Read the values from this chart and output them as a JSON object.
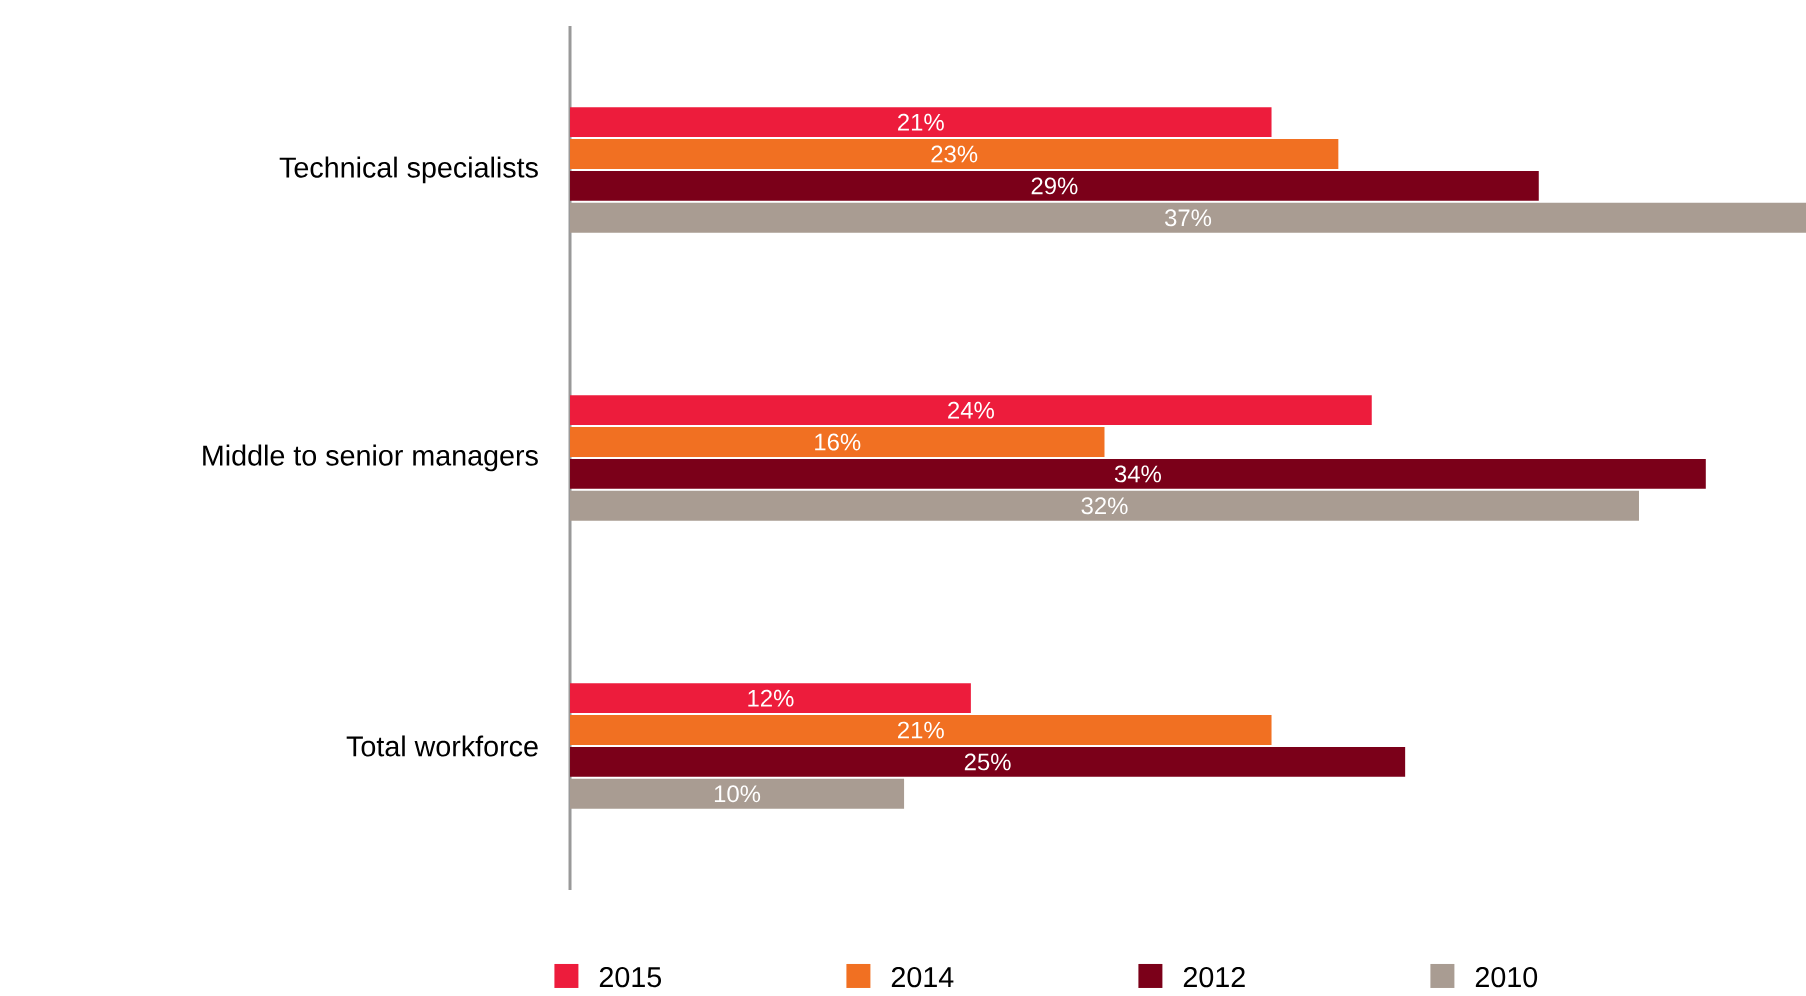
{
  "chart_data": {
    "type": "bar",
    "orientation": "horizontal",
    "categories": [
      "Technical specialists",
      "Middle to senior managers",
      "Total workforce"
    ],
    "series": [
      {
        "name": "2015",
        "color": "#ed1c3c",
        "values": [
          21,
          24,
          12
        ],
        "value_labels": [
          "21%",
          "24%",
          "12%"
        ]
      },
      {
        "name": "2014",
        "color": "#f17022",
        "values": [
          23,
          16,
          21
        ],
        "value_labels": [
          "23%",
          "16%",
          "21%"
        ]
      },
      {
        "name": "2012",
        "color": "#7b0019",
        "values": [
          29,
          34,
          25
        ],
        "value_labels": [
          "29%",
          "34%",
          "25%"
        ]
      },
      {
        "name": "2010",
        "color": "#a99c92",
        "values": [
          37,
          32,
          10
        ],
        "value_labels": [
          "37%",
          "32%",
          "10%"
        ]
      }
    ],
    "legend": "bottom"
  }
}
